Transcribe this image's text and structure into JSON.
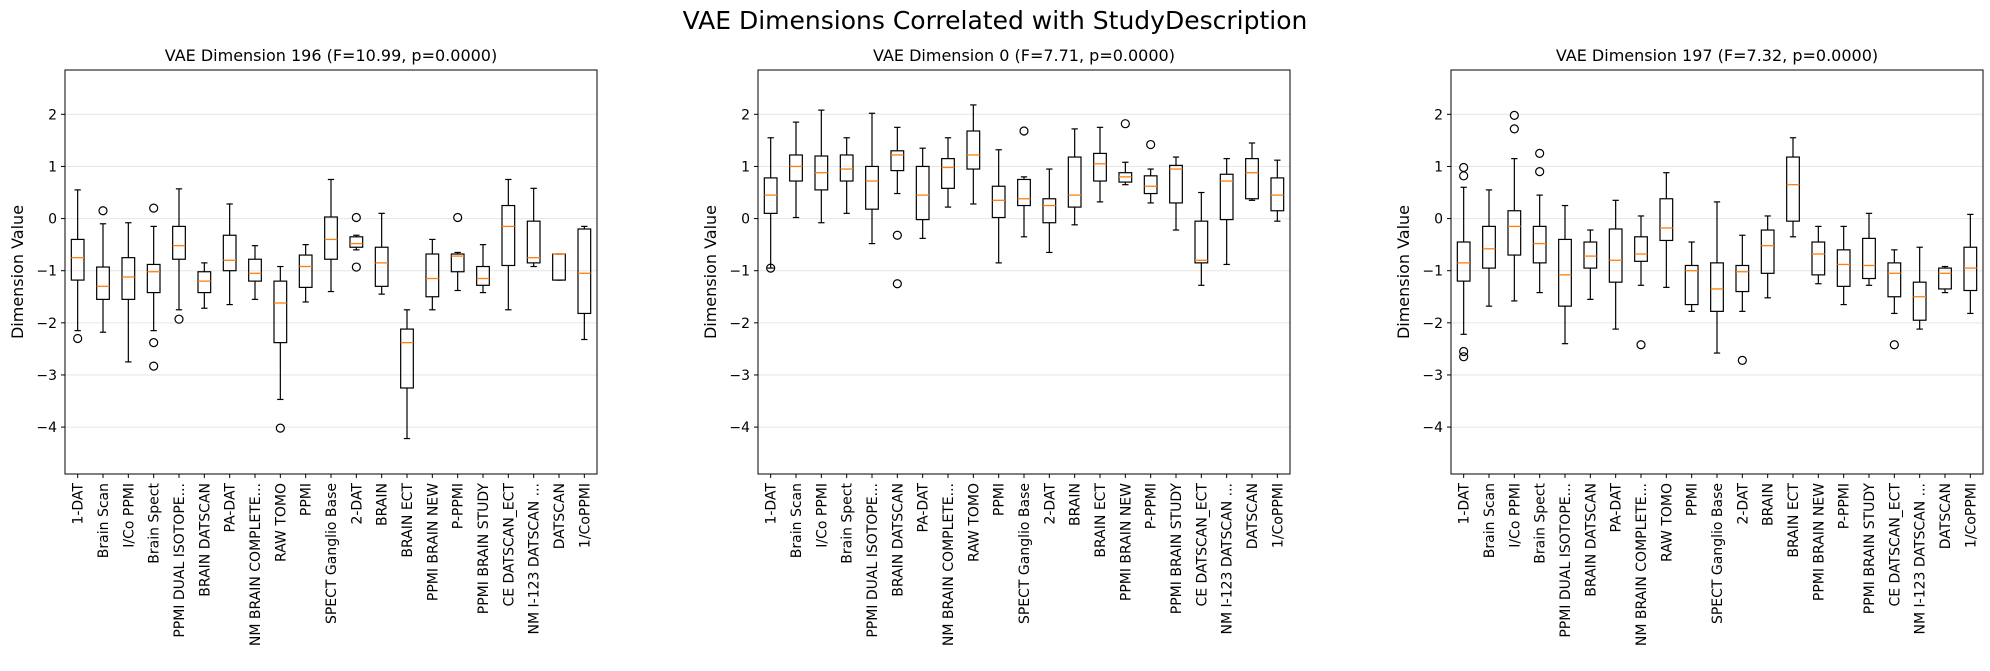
{
  "figure": {
    "title": "VAE Dimensions Correlated with StudyDescription"
  },
  "chart_data": [
    {
      "type": "box",
      "title": "VAE Dimension 196 (F=10.99, p=0.0000)",
      "ylabel": "Dimension Value",
      "ylim": [
        -4.9,
        2.85
      ],
      "yticks": [
        -4,
        -3,
        -2,
        -1,
        0,
        1,
        2
      ],
      "grid": "y",
      "colors": {
        "box": "#000000",
        "median": "#ff7f0e",
        "grid": "#e6e6e6"
      },
      "categories": [
        "1-DAT",
        "Brain Scan",
        "I/Co PPMI",
        "Brain Spect",
        "PPMI DUAL ISOTOPE...",
        "BRAIN DATSCAN",
        "PA-DAT",
        "NM BRAIN COMPLETE...",
        "RAW TOMO",
        "PPMI",
        "SPECT Ganglio  Base",
        "2-DAT",
        "BRAIN",
        "BRAIN ECT",
        "PPMI BRAIN NEW",
        "P-PPMI",
        "PPMI BRAIN STUDY",
        "CE DATSCAN_ECT",
        "NM I-123 DATSCAN ...",
        "DATSCAN",
        "1/CoPPMI"
      ],
      "boxes": [
        {
          "whislo": -2.15,
          "q1": -1.18,
          "med": -0.75,
          "q3": -0.4,
          "whishi": 0.55,
          "fliers": [
            -2.3
          ]
        },
        {
          "whislo": -2.18,
          "q1": -1.55,
          "med": -1.3,
          "q3": -0.93,
          "whishi": -0.1,
          "fliers": [
            0.15
          ]
        },
        {
          "whislo": -2.75,
          "q1": -1.55,
          "med": -1.12,
          "q3": -0.75,
          "whishi": -0.08,
          "fliers": []
        },
        {
          "whislo": -2.15,
          "q1": -1.42,
          "med": -1.02,
          "q3": -0.88,
          "whishi": -0.15,
          "fliers": [
            0.2,
            -2.38,
            -2.83
          ]
        },
        {
          "whislo": -1.75,
          "q1": -0.78,
          "med": -0.52,
          "q3": -0.15,
          "whishi": 0.57,
          "fliers": [
            -1.93
          ]
        },
        {
          "whislo": -1.72,
          "q1": -1.42,
          "med": -1.2,
          "q3": -1.02,
          "whishi": -0.85,
          "fliers": []
        },
        {
          "whislo": -1.65,
          "q1": -1.0,
          "med": -0.8,
          "q3": -0.32,
          "whishi": 0.28,
          "fliers": []
        },
        {
          "whislo": -1.55,
          "q1": -1.2,
          "med": -1.05,
          "q3": -0.78,
          "whishi": -0.52,
          "fliers": []
        },
        {
          "whislo": -3.47,
          "q1": -2.38,
          "med": -1.62,
          "q3": -1.2,
          "whishi": -0.92,
          "fliers": [
            -4.02
          ]
        },
        {
          "whislo": -1.6,
          "q1": -1.32,
          "med": -0.92,
          "q3": -0.7,
          "whishi": -0.5,
          "fliers": []
        },
        {
          "whislo": -1.4,
          "q1": -0.78,
          "med": -0.4,
          "q3": 0.03,
          "whishi": 0.75,
          "fliers": []
        },
        {
          "whislo": -0.6,
          "q1": -0.55,
          "med": -0.48,
          "q3": -0.35,
          "whishi": -0.32,
          "fliers": [
            0.02,
            -0.93
          ]
        },
        {
          "whislo": -1.45,
          "q1": -1.3,
          "med": -0.85,
          "q3": -0.55,
          "whishi": 0.1,
          "fliers": []
        },
        {
          "whislo": -4.22,
          "q1": -3.25,
          "med": -2.38,
          "q3": -2.12,
          "whishi": -1.75,
          "fliers": []
        },
        {
          "whislo": -1.75,
          "q1": -1.5,
          "med": -1.15,
          "q3": -0.68,
          "whishi": -0.4,
          "fliers": []
        },
        {
          "whislo": -1.38,
          "q1": -1.02,
          "med": -0.72,
          "q3": -0.68,
          "whishi": -0.65,
          "fliers": [
            0.02
          ]
        },
        {
          "whislo": -1.42,
          "q1": -1.28,
          "med": -1.15,
          "q3": -0.92,
          "whishi": -0.5,
          "fliers": []
        },
        {
          "whislo": -1.75,
          "q1": -0.9,
          "med": -0.15,
          "q3": 0.25,
          "whishi": 0.75,
          "fliers": []
        },
        {
          "whislo": -0.92,
          "q1": -0.85,
          "med": -0.75,
          "q3": -0.05,
          "whishi": 0.58,
          "fliers": []
        },
        {
          "whislo": -1.18,
          "q1": -1.18,
          "med": -0.68,
          "q3": -0.68,
          "whishi": -0.68,
          "fliers": []
        },
        {
          "whislo": -2.32,
          "q1": -1.82,
          "med": -1.05,
          "q3": -0.2,
          "whishi": -0.15,
          "fliers": []
        }
      ]
    },
    {
      "type": "box",
      "title": "VAE Dimension 0 (F=7.71, p=0.0000)",
      "ylabel": "Dimension Value",
      "ylim": [
        -4.9,
        2.85
      ],
      "yticks": [
        -4,
        -3,
        -2,
        -1,
        0,
        1,
        2
      ],
      "grid": "y",
      "colors": {
        "box": "#000000",
        "median": "#ff7f0e",
        "grid": "#e6e6e6"
      },
      "categories": [
        "1-DAT",
        "Brain Scan",
        "I/Co PPMI",
        "Brain Spect",
        "PPMI DUAL ISOTOPE...",
        "BRAIN DATSCAN",
        "PA-DAT",
        "NM BRAIN COMPLETE...",
        "RAW TOMO",
        "PPMI",
        "SPECT Ganglio  Base",
        "2-DAT",
        "BRAIN",
        "BRAIN ECT",
        "PPMI BRAIN NEW",
        "P-PPMI",
        "PPMI BRAIN STUDY",
        "CE DATSCAN_ECT",
        "NM I-123 DATSCAN ...",
        "DATSCAN",
        "1/CoPPMI"
      ],
      "boxes": [
        {
          "whislo": -0.95,
          "q1": 0.1,
          "med": 0.45,
          "q3": 0.78,
          "whishi": 1.55,
          "fliers": [
            -0.95
          ]
        },
        {
          "whislo": 0.02,
          "q1": 0.72,
          "med": 1.0,
          "q3": 1.22,
          "whishi": 1.85,
          "fliers": []
        },
        {
          "whislo": -0.08,
          "q1": 0.55,
          "med": 0.88,
          "q3": 1.2,
          "whishi": 2.08,
          "fliers": []
        },
        {
          "whislo": 0.1,
          "q1": 0.72,
          "med": 0.95,
          "q3": 1.22,
          "whishi": 1.55,
          "fliers": []
        },
        {
          "whislo": -0.48,
          "q1": 0.18,
          "med": 0.72,
          "q3": 1.0,
          "whishi": 2.02,
          "fliers": []
        },
        {
          "whislo": 0.48,
          "q1": 0.92,
          "med": 1.22,
          "q3": 1.3,
          "whishi": 1.75,
          "fliers": [
            -0.32,
            -1.25
          ]
        },
        {
          "whislo": -0.38,
          "q1": -0.02,
          "med": 0.45,
          "q3": 1.0,
          "whishi": 1.35,
          "fliers": []
        },
        {
          "whislo": 0.22,
          "q1": 0.58,
          "med": 0.98,
          "q3": 1.15,
          "whishi": 1.55,
          "fliers": []
        },
        {
          "whislo": 0.28,
          "q1": 0.95,
          "med": 1.22,
          "q3": 1.68,
          "whishi": 2.18,
          "fliers": []
        },
        {
          "whislo": -0.85,
          "q1": 0.02,
          "med": 0.35,
          "q3": 0.62,
          "whishi": 1.32,
          "fliers": []
        },
        {
          "whislo": -0.35,
          "q1": 0.25,
          "med": 0.38,
          "q3": 0.75,
          "whishi": 0.8,
          "fliers": [
            1.68
          ]
        },
        {
          "whislo": -0.65,
          "q1": -0.08,
          "med": 0.25,
          "q3": 0.38,
          "whishi": 0.95,
          "fliers": []
        },
        {
          "whislo": -0.12,
          "q1": 0.22,
          "med": 0.45,
          "q3": 1.18,
          "whishi": 1.72,
          "fliers": []
        },
        {
          "whislo": 0.32,
          "q1": 0.72,
          "med": 1.05,
          "q3": 1.25,
          "whishi": 1.75,
          "fliers": []
        },
        {
          "whislo": 0.65,
          "q1": 0.7,
          "med": 0.8,
          "q3": 0.88,
          "whishi": 1.08,
          "fliers": [
            1.82
          ]
        },
        {
          "whislo": 0.3,
          "q1": 0.48,
          "med": 0.62,
          "q3": 0.82,
          "whishi": 0.95,
          "fliers": [
            1.42
          ]
        },
        {
          "whislo": -0.22,
          "q1": 0.3,
          "med": 0.95,
          "q3": 1.02,
          "whishi": 1.18,
          "fliers": []
        },
        {
          "whislo": -1.28,
          "q1": -0.85,
          "med": -0.8,
          "q3": -0.05,
          "whishi": 0.5,
          "fliers": []
        },
        {
          "whislo": -0.88,
          "q1": -0.02,
          "med": 0.72,
          "q3": 0.85,
          "whishi": 1.15,
          "fliers": []
        },
        {
          "whislo": 0.35,
          "q1": 0.38,
          "med": 0.88,
          "q3": 1.15,
          "whishi": 1.45,
          "fliers": []
        },
        {
          "whislo": -0.05,
          "q1": 0.15,
          "med": 0.45,
          "q3": 0.78,
          "whishi": 1.12,
          "fliers": []
        }
      ]
    },
    {
      "type": "box",
      "title": "VAE Dimension 197 (F=7.32, p=0.0000)",
      "ylabel": "Dimension Value",
      "ylim": [
        -4.9,
        2.85
      ],
      "yticks": [
        -4,
        -3,
        -2,
        -1,
        0,
        1,
        2
      ],
      "grid": "y",
      "colors": {
        "box": "#000000",
        "median": "#ff7f0e",
        "grid": "#e6e6e6"
      },
      "categories": [
        "1-DAT",
        "Brain Scan",
        "I/Co PPMI",
        "Brain Spect",
        "PPMI DUAL ISOTOPE...",
        "BRAIN DATSCAN",
        "PA-DAT",
        "NM BRAIN COMPLETE...",
        "RAW TOMO",
        "PPMI",
        "SPECT Ganglio  Base",
        "2-DAT",
        "BRAIN",
        "BRAIN ECT",
        "PPMI BRAIN NEW",
        "P-PPMI",
        "PPMI BRAIN STUDY",
        "CE DATSCAN_ECT",
        "NM I-123 DATSCAN ...",
        "DATSCAN",
        "1/CoPPMI"
      ],
      "boxes": [
        {
          "whislo": -2.22,
          "q1": -1.2,
          "med": -0.85,
          "q3": -0.45,
          "whishi": 0.6,
          "fliers": [
            0.98,
            0.82,
            -2.55,
            -2.65
          ]
        },
        {
          "whislo": -1.68,
          "q1": -0.95,
          "med": -0.58,
          "q3": -0.15,
          "whishi": 0.55,
          "fliers": []
        },
        {
          "whislo": -1.58,
          "q1": -0.7,
          "med": -0.15,
          "q3": 0.15,
          "whishi": 1.15,
          "fliers": [
            1.98,
            1.72
          ]
        },
        {
          "whislo": -1.42,
          "q1": -0.85,
          "med": -0.48,
          "q3": -0.15,
          "whishi": 0.45,
          "fliers": [
            1.25,
            0.9
          ]
        },
        {
          "whislo": -2.4,
          "q1": -1.68,
          "med": -1.08,
          "q3": -0.4,
          "whishi": 0.25,
          "fliers": []
        },
        {
          "whislo": -1.55,
          "q1": -0.95,
          "med": -0.72,
          "q3": -0.45,
          "whishi": -0.22,
          "fliers": []
        },
        {
          "whislo": -2.12,
          "q1": -1.22,
          "med": -0.8,
          "q3": -0.2,
          "whishi": 0.35,
          "fliers": []
        },
        {
          "whislo": -1.28,
          "q1": -0.82,
          "med": -0.68,
          "q3": -0.35,
          "whishi": 0.05,
          "fliers": [
            -2.42
          ]
        },
        {
          "whislo": -1.32,
          "q1": -0.42,
          "med": -0.18,
          "q3": 0.38,
          "whishi": 0.88,
          "fliers": []
        },
        {
          "whislo": -1.78,
          "q1": -1.65,
          "med": -1.0,
          "q3": -0.9,
          "whishi": -0.45,
          "fliers": []
        },
        {
          "whislo": -2.58,
          "q1": -1.78,
          "med": -1.35,
          "q3": -0.85,
          "whishi": 0.32,
          "fliers": []
        },
        {
          "whislo": -1.78,
          "q1": -1.4,
          "med": -1.02,
          "q3": -0.9,
          "whishi": -0.32,
          "fliers": [
            -2.72
          ]
        },
        {
          "whislo": -1.52,
          "q1": -1.05,
          "med": -0.52,
          "q3": -0.22,
          "whishi": 0.05,
          "fliers": []
        },
        {
          "whislo": -0.35,
          "q1": -0.05,
          "med": 0.65,
          "q3": 1.18,
          "whishi": 1.55,
          "fliers": []
        },
        {
          "whislo": -1.25,
          "q1": -1.08,
          "med": -0.68,
          "q3": -0.45,
          "whishi": -0.15,
          "fliers": []
        },
        {
          "whislo": -1.65,
          "q1": -1.3,
          "med": -0.88,
          "q3": -0.6,
          "whishi": -0.15,
          "fliers": []
        },
        {
          "whislo": -1.28,
          "q1": -1.15,
          "med": -0.9,
          "q3": -0.38,
          "whishi": 0.1,
          "fliers": []
        },
        {
          "whislo": -1.82,
          "q1": -1.5,
          "med": -1.05,
          "q3": -0.85,
          "whishi": -0.6,
          "fliers": [
            -2.42
          ]
        },
        {
          "whislo": -2.12,
          "q1": -1.95,
          "med": -1.5,
          "q3": -1.22,
          "whishi": -0.55,
          "fliers": []
        },
        {
          "whislo": -1.42,
          "q1": -1.35,
          "med": -1.05,
          "q3": -0.95,
          "whishi": -0.92,
          "fliers": []
        },
        {
          "whislo": -1.82,
          "q1": -1.38,
          "med": -0.95,
          "q3": -0.55,
          "whishi": 0.08,
          "fliers": []
        }
      ]
    }
  ]
}
